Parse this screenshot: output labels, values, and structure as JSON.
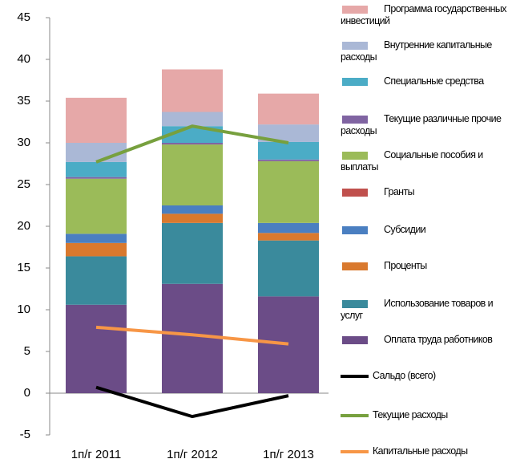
{
  "chart_data": {
    "type": "bar",
    "stacked": true,
    "categories": [
      "1п/г 2011",
      "1п/г 2012",
      "1п/г 2013"
    ],
    "ylim": [
      -5,
      45
    ],
    "yticks": [
      -5,
      0,
      5,
      10,
      15,
      20,
      25,
      30,
      35,
      40,
      45
    ],
    "series": [
      {
        "name": "Оплата труда работников",
        "color": "#6b4c87",
        "values": [
          10.6,
          13.1,
          11.6
        ]
      },
      {
        "name": "Использование товаров и услуг",
        "color": "#3a8a9c",
        "values": [
          5.8,
          7.3,
          6.7
        ]
      },
      {
        "name": "Проценты",
        "color": "#d9792e",
        "values": [
          1.6,
          1.1,
          0.9
        ]
      },
      {
        "name": "Субсидии",
        "color": "#4a7fc1",
        "values": [
          1.1,
          1.0,
          1.2
        ]
      },
      {
        "name": "Гранты",
        "color": "#c0504d",
        "values": [
          0,
          0,
          0
        ]
      },
      {
        "name": "Социальные пособия и выплаты",
        "color": "#9bbb59",
        "values": [
          6.6,
          7.3,
          7.4
        ]
      },
      {
        "name": "Текущие различные прочие расходы",
        "color": "#8064a2",
        "values": [
          0.2,
          0.2,
          0.2
        ]
      },
      {
        "name": "Специальные средства",
        "color": "#4bacc6",
        "values": [
          1.8,
          2.0,
          2.1
        ]
      },
      {
        "name": "Внутренние капитальные расходы",
        "color": "#aab8d6",
        "values": [
          2.3,
          1.7,
          2.1
        ]
      },
      {
        "name": "Программа государственных инвестиций",
        "color": "#e6a8a8",
        "values": [
          5.4,
          5.1,
          3.7
        ]
      },
      {
        "name": "Сальдо (всего)",
        "type": "line",
        "color": "#000000",
        "values": [
          0.7,
          -2.8,
          -0.3
        ]
      },
      {
        "name": "Текущие расходы",
        "type": "line",
        "color": "#77a03e",
        "values": [
          27.7,
          32.0,
          30.0
        ]
      },
      {
        "name": "Капитальные расходы",
        "type": "line",
        "color": "#f79646",
        "values": [
          7.9,
          7.0,
          5.9
        ]
      }
    ]
  }
}
